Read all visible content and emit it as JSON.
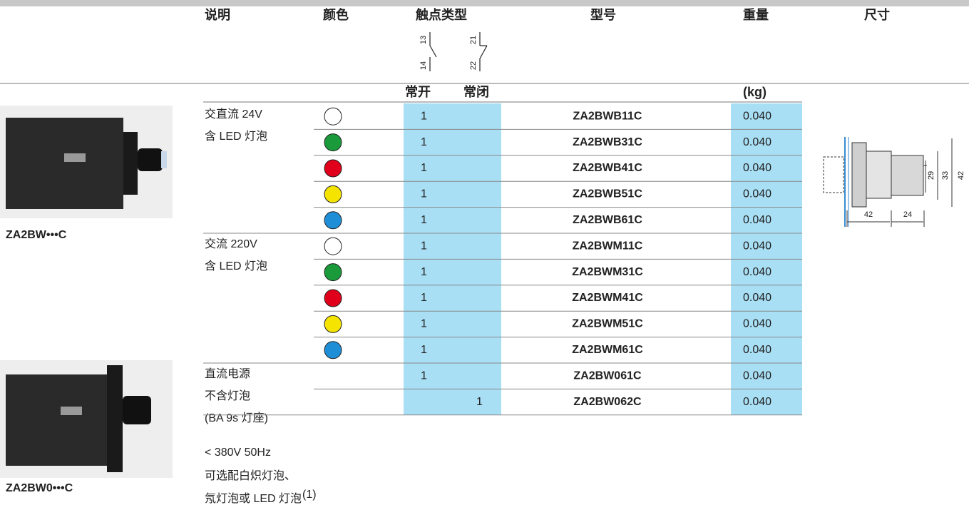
{
  "header": {
    "columns": [
      "说明",
      "颜色",
      "触点类型",
      "型号",
      "重量",
      "尺寸"
    ],
    "contact_terminals": [
      "13",
      "14",
      "21",
      "22"
    ],
    "contact_labels": [
      "常开",
      "常闭"
    ],
    "weight_unit": "(kg)"
  },
  "products": [
    {
      "caption": "ZA2BW•••C"
    },
    {
      "caption": "ZA2BW0•••C"
    }
  ],
  "groups": [
    {
      "description": [
        "交直流 24V",
        "含 LED 灯泡"
      ],
      "rows": [
        {
          "color": "#ffffff",
          "no": "1",
          "model": "ZA2BWB11C",
          "weight": "0.040"
        },
        {
          "color": "#1a9a3a",
          "no": "1",
          "model": "ZA2BWB31C",
          "weight": "0.040"
        },
        {
          "color": "#e0001b",
          "no": "1",
          "model": "ZA2BWB41C",
          "weight": "0.040"
        },
        {
          "color": "#f5e400",
          "no": "1",
          "model": "ZA2BWB51C",
          "weight": "0.040"
        },
        {
          "color": "#1e8fd6",
          "no": "1",
          "model": "ZA2BWB61C",
          "weight": "0.040"
        }
      ]
    },
    {
      "description": [
        "交流 220V",
        "含 LED 灯泡"
      ],
      "rows": [
        {
          "color": "#ffffff",
          "no": "1",
          "model": "ZA2BWM11C",
          "weight": "0.040"
        },
        {
          "color": "#1a9a3a",
          "no": "1",
          "model": "ZA2BWM31C",
          "weight": "0.040"
        },
        {
          "color": "#e0001b",
          "no": "1",
          "model": "ZA2BWM41C",
          "weight": "0.040"
        },
        {
          "color": "#f5e400",
          "no": "1",
          "model": "ZA2BWM51C",
          "weight": "0.040"
        },
        {
          "color": "#1e8fd6",
          "no": "1",
          "model": "ZA2BWM61C",
          "weight": "0.040"
        }
      ]
    },
    {
      "description": [
        "直流电源",
        "不含灯泡",
        "(BA 9s 灯座)"
      ],
      "rows": [
        {
          "no": "1",
          "model": "ZA2BW061C",
          "weight": "0.040"
        },
        {
          "nc": "1",
          "model": "ZA2BW062C",
          "weight": "0.040"
        }
      ]
    }
  ],
  "notes": {
    "voltage": "< 380V 50Hz",
    "lines": [
      "可选配白炽灯泡、",
      "氖灯泡或 LED 灯泡"
    ],
    "footnote_mark": "(1)"
  },
  "dimensions": [
    "29",
    "33",
    "42",
    "42",
    "24"
  ]
}
